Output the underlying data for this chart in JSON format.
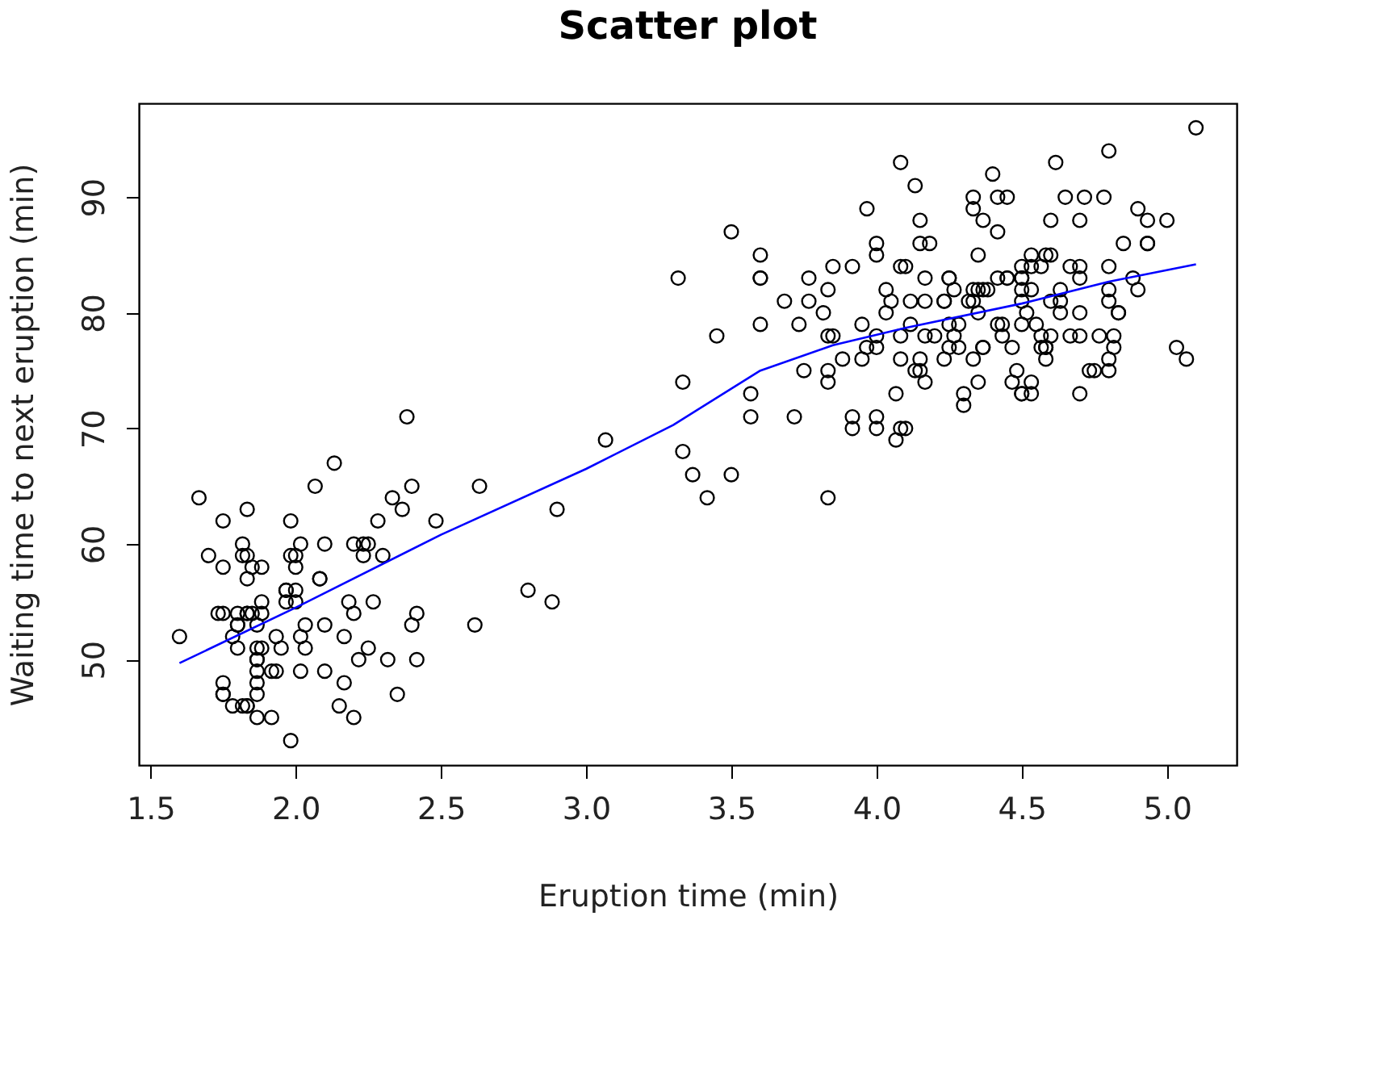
{
  "chart_data": {
    "type": "scatter",
    "title": "Scatter plot",
    "xlabel": "Eruption time (min)",
    "ylabel": "Waiting time to next eruption (min)",
    "xlim": [
      1.46,
      5.24
    ],
    "ylim": [
      40.88,
      98.12
    ],
    "xticks": [
      1.5,
      {
        "value": 2,
        "label": "2.0"
      },
      2.5,
      {
        "value": 3,
        "label": "3.0"
      },
      3.5,
      {
        "value": 4,
        "label": "4.0"
      },
      4.5,
      {
        "value": 5,
        "label": "5.0"
      }
    ],
    "yticks": [
      50,
      60,
      70,
      80,
      90
    ],
    "grid": false,
    "series": [
      {
        "color": "#000000",
        "marker": "circle",
        "x": [
          3.6,
          1.8,
          3.333,
          2.283,
          4.533,
          2.883,
          4.7,
          3.6,
          1.95,
          4.35,
          1.833,
          3.917,
          4.2,
          1.75,
          4.7,
          2.167,
          1.75,
          4.8,
          1.6,
          4.25,
          1.8,
          1.75,
          3.45,
          3.067,
          4.533,
          3.6,
          1.967,
          4.083,
          3.85,
          4.433,
          4.3,
          4.467,
          3.367,
          4.033,
          3.833,
          2.017,
          1.867,
          4.833,
          1.833,
          4.783,
          4.35,
          1.883,
          4.567,
          1.75,
          4.533,
          3.317,
          3.833,
          2.1,
          4.633,
          2.0,
          4.8,
          4.716,
          1.833,
          4.833,
          1.733,
          4.883,
          3.717,
          1.667,
          4.567,
          4.317,
          2.233,
          4.5,
          1.75,
          4.8,
          1.817,
          4.4,
          4.167,
          4.7,
          2.067,
          4.7,
          4.033,
          1.967,
          4.5,
          4.0,
          1.983,
          5.067,
          2.017,
          4.567,
          3.883,
          3.6,
          4.133,
          4.333,
          4.1,
          2.633,
          4.067,
          4.933,
          3.95,
          4.517,
          2.167,
          4.0,
          2.2,
          4.333,
          1.867,
          4.817,
          1.833,
          4.3,
          4.667,
          3.75,
          1.867,
          4.9,
          2.483,
          4.367,
          2.1,
          4.5,
          4.05,
          1.867,
          4.7,
          1.783,
          4.85,
          3.683,
          4.733,
          2.3,
          4.9,
          4.417,
          1.7,
          4.633,
          2.317,
          4.6,
          1.817,
          4.417,
          2.617,
          4.067,
          4.25,
          1.967,
          4.6,
          3.767,
          1.917,
          4.5,
          2.267,
          4.65,
          1.867,
          4.167,
          2.8,
          4.333,
          1.833,
          4.383,
          1.883,
          4.933,
          2.033,
          3.733,
          4.233,
          2.233,
          4.533,
          4.817,
          4.333,
          1.983,
          4.633,
          2.017,
          5.1,
          1.8,
          5.033,
          4.0,
          2.4,
          4.6,
          3.567,
          4.0,
          4.5,
          4.083,
          1.8,
          3.967,
          2.2,
          4.15,
          2.0,
          3.833,
          3.5,
          4.583,
          2.367,
          5.0,
          1.933,
          4.617,
          1.917,
          2.083,
          4.583,
          3.333,
          4.167,
          4.333,
          4.5,
          2.417,
          4.0,
          4.167,
          1.883,
          4.583,
          4.25,
          3.767,
          2.033,
          4.433,
          4.083,
          1.833,
          4.417,
          2.183,
          4.8,
          1.833,
          4.8,
          4.1,
          3.966,
          4.233,
          3.5,
          4.366,
          2.25,
          4.667,
          2.1,
          4.35,
          4.133,
          1.867,
          4.6,
          1.783,
          4.367,
          3.85,
          1.933,
          4.5,
          2.383,
          4.7,
          1.867,
          3.833,
          3.417,
          4.233,
          2.4,
          4.8,
          2.0,
          4.15,
          1.867,
          4.267,
          1.75,
          4.483,
          4.0,
          4.117,
          4.083,
          4.267,
          3.917,
          4.55,
          4.083,
          2.417,
          4.183,
          2.217,
          4.45,
          1.883,
          1.85,
          4.283,
          3.95,
          2.333,
          4.15,
          2.35,
          4.933,
          2.9,
          4.583,
          3.833,
          2.083,
          4.367,
          2.133,
          4.35,
          2.2,
          4.45,
          3.567,
          4.5,
          4.15,
          3.817,
          3.917,
          4.45,
          2.0,
          4.283,
          4.767,
          4.533,
          1.85,
          4.25,
          1.983,
          2.25,
          4.75,
          4.117,
          2.15,
          4.417,
          1.817,
          4.467
        ],
        "values": [
          79,
          54,
          74,
          62,
          85,
          55,
          88,
          85,
          51,
          85,
          54,
          84,
          78,
          47,
          83,
          52,
          62,
          84,
          52,
          79,
          51,
          47,
          78,
          69,
          74,
          83,
          55,
          76,
          78,
          79,
          73,
          77,
          66,
          80,
          74,
          52,
          48,
          80,
          59,
          90,
          80,
          58,
          84,
          58,
          73,
          83,
          64,
          53,
          82,
          59,
          75,
          90,
          54,
          80,
          54,
          83,
          71,
          64,
          77,
          81,
          59,
          84,
          48,
          82,
          60,
          92,
          78,
          78,
          65,
          73,
          82,
          56,
          79,
          71,
          62,
          76,
          60,
          78,
          76,
          83,
          75,
          82,
          70,
          65,
          73,
          88,
          76,
          80,
          48,
          86,
          60,
          90,
          50,
          78,
          63,
          72,
          84,
          75,
          51,
          82,
          62,
          88,
          49,
          83,
          81,
          47,
          84,
          52,
          86,
          81,
          75,
          59,
          89,
          79,
          59,
          81,
          50,
          85,
          59,
          87,
          53,
          69,
          77,
          56,
          88,
          81,
          45,
          82,
          55,
          90,
          45,
          83,
          56,
          89,
          46,
          82,
          51,
          86,
          53,
          79,
          81,
          60,
          82,
          77,
          76,
          59,
          80,
          49,
          96,
          53,
          77,
          77,
          65,
          81,
          71,
          70,
          81,
          93,
          53,
          89,
          45,
          86,
          58,
          78,
          66,
          76,
          63,
          88,
          52,
          93,
          49,
          57,
          77,
          68,
          81,
          81,
          73,
          50,
          85,
          74,
          55,
          77,
          83,
          83,
          51,
          78,
          84,
          46,
          83,
          55,
          81,
          57,
          76,
          84,
          77,
          81,
          87,
          77,
          51,
          78,
          60,
          82,
          91,
          53,
          78,
          46,
          77,
          84,
          49,
          83,
          71,
          80,
          49,
          75,
          64,
          76,
          53,
          94,
          55,
          76,
          50,
          82,
          54,
          75,
          78,
          79,
          78,
          78,
          70,
          79,
          70,
          54,
          86,
          50,
          90,
          54,
          54,
          77,
          79,
          64,
          75,
          47,
          86,
          63,
          85,
          82,
          57,
          82,
          67,
          74,
          54,
          83,
          73,
          73,
          88,
          80,
          71,
          83,
          56,
          79,
          78,
          84,
          58,
          83,
          43,
          60,
          75,
          81,
          46,
          90,
          46,
          74
        ]
      },
      {
        "type": "line",
        "color": "#0000ff",
        "line_style": "solid",
        "marker": "none",
        "x": [
          1.6,
          2.0,
          2.5,
          3.0,
          3.3,
          3.6,
          3.85,
          4.1,
          4.5,
          4.8,
          5.1
        ],
        "values": [
          49.7,
          54.5,
          60.8,
          66.5,
          70.3,
          75,
          77.2,
          78.7,
          80.8,
          82.7,
          84.2
        ]
      }
    ]
  }
}
